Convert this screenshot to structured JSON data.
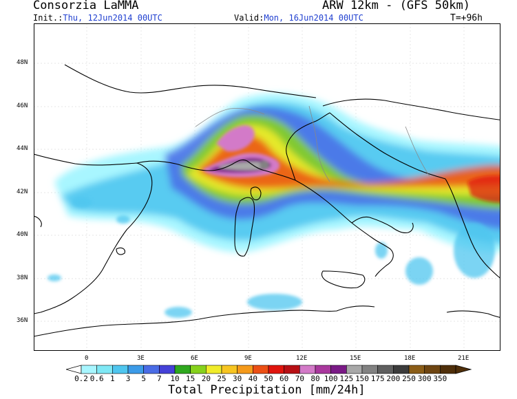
{
  "header": {
    "source": "Consorzia LaMMA",
    "model": "ARW 12km - (GFS 50km)",
    "init_label": "Init.:",
    "init_value": "Thu, 12Jun2014 00UTC",
    "valid_label": "Valid:",
    "valid_value": "Mon, 16Jun2014 00UTC",
    "lead_time": "T=+96h"
  },
  "map": {
    "lat_labels": [
      "48N",
      "46N",
      "44N",
      "42N",
      "40N",
      "38N",
      "36N"
    ],
    "lon_labels": [
      "0",
      "3E",
      "6E",
      "9E",
      "12E",
      "15E",
      "18E",
      "21E"
    ]
  },
  "colorbar": {
    "title": "Total Precipitation [mm/24h]",
    "levels": [
      "0.2",
      "0.6",
      "1",
      "3",
      "5",
      "7",
      "10",
      "15",
      "20",
      "25",
      "30",
      "40",
      "50",
      "60",
      "70",
      "80",
      "100",
      "125",
      "150",
      "175",
      "200",
      "250",
      "300",
      "350"
    ],
    "colors": [
      "#a8f6ff",
      "#7fe8f5",
      "#4fc6ef",
      "#3c9be8",
      "#4a6ce6",
      "#4541d8",
      "#2fa81e",
      "#86d21c",
      "#f0ec2a",
      "#f7c521",
      "#f59a1a",
      "#ec4f14",
      "#e0140d",
      "#b70f14",
      "#d37ac8",
      "#a9389d",
      "#7a1a86",
      "#a8a8a8",
      "#828282",
      "#5f5f5f",
      "#3c3c3c",
      "#8b5d17",
      "#6e4511",
      "#4f2f0a"
    ]
  }
}
